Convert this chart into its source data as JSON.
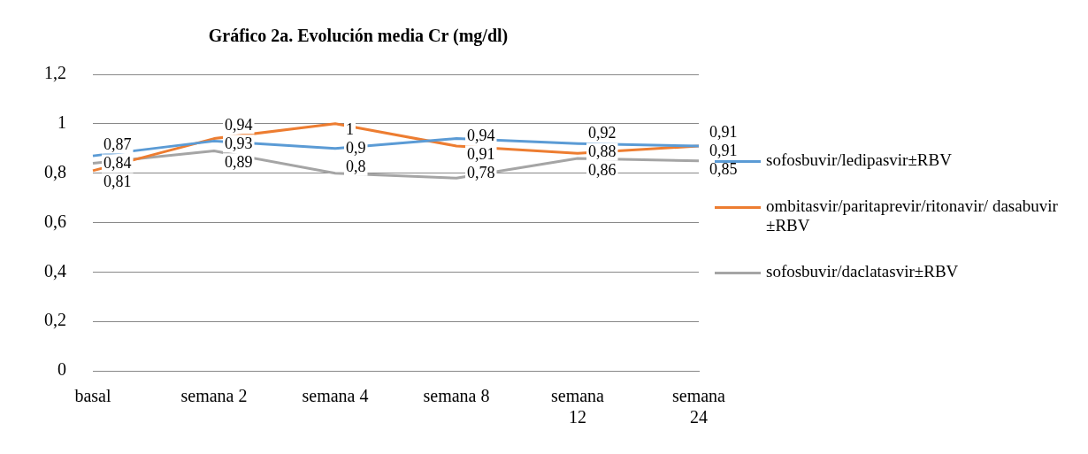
{
  "chart_data": {
    "type": "line",
    "title": "Gráfico 2a. Evolución media Cr (mg/dl)",
    "categories": [
      "basal",
      "semana 2",
      "semana 4",
      "semana 8",
      "semana 12",
      "semana 24"
    ],
    "series": [
      {
        "name": "sofosbuvir/ledipasvir±RBV",
        "color": "#5b9bd5",
        "values": [
          0.87,
          0.93,
          0.9,
          0.94,
          0.92,
          0.91
        ],
        "value_labels": [
          "0,87",
          "0,93",
          "0,9",
          "0,94",
          "0,92",
          "0,91"
        ]
      },
      {
        "name": "ombitasvir/paritaprevir/ritonavir/ dasabuvir ±RBV",
        "color": "#ed7d31",
        "values": [
          0.81,
          0.94,
          1,
          0.91,
          0.88,
          0.91
        ],
        "value_labels": [
          "0,81",
          "0,94",
          "1",
          "0,91",
          "0,88",
          "0,91"
        ]
      },
      {
        "name": "sofosbuvir/daclatasvir±RBV",
        "color": "#a5a5a5",
        "values": [
          0.84,
          0.89,
          0.8,
          0.78,
          0.86,
          0.85
        ],
        "value_labels": [
          "0,84",
          "0,89",
          "0,8",
          "0,78",
          "0,86",
          "0,85"
        ]
      }
    ],
    "ylim": [
      0,
      1.2
    ],
    "yticks": [
      {
        "value": 0,
        "label": "0"
      },
      {
        "value": 0.2,
        "label": "0,2"
      },
      {
        "value": 0.4,
        "label": "0,4"
      },
      {
        "value": 0.6,
        "label": "0,6"
      },
      {
        "value": 0.8,
        "label": "0,8"
      },
      {
        "value": 1,
        "label": "1"
      },
      {
        "value": 1.2,
        "label": "1,2"
      }
    ],
    "grid": "y",
    "legend": "right",
    "marker": "none",
    "line_style": "solid"
  }
}
